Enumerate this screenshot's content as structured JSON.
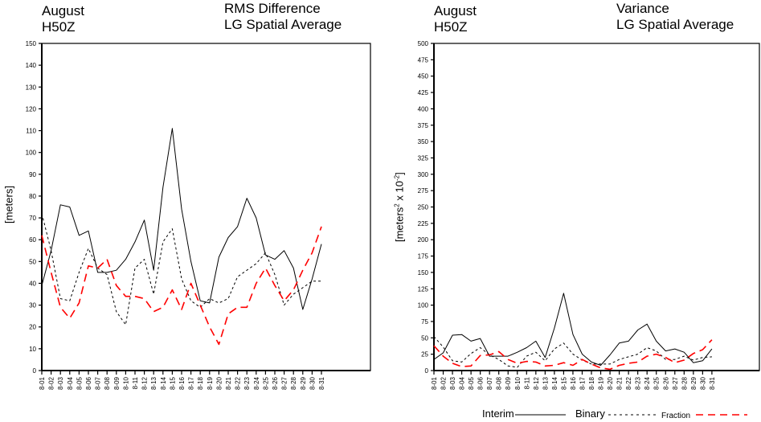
{
  "chart_data": [
    {
      "type": "line",
      "title_left": [
        "August",
        "H50Z"
      ],
      "title_right": [
        "RMS Difference",
        "LG Spatial Average"
      ],
      "ylabel": "[meters]",
      "xlabel": "",
      "ylim": [
        0,
        150
      ],
      "yticks": [
        0,
        10,
        20,
        30,
        40,
        50,
        60,
        70,
        80,
        90,
        100,
        110,
        120,
        130,
        140,
        150
      ],
      "categories": [
        "8-01",
        "8-02",
        "8-03",
        "8-04",
        "8-05",
        "8-06",
        "8-07",
        "8-08",
        "8-09",
        "8-10",
        "8-11",
        "8-12",
        "8-13",
        "8-14",
        "8-15",
        "8-16",
        "8-17",
        "8-18",
        "8-19",
        "8-20",
        "8-21",
        "8-22",
        "8-23",
        "8-24",
        "8-25",
        "8-26",
        "8-27",
        "8-28",
        "8-29",
        "8-30",
        "8-31"
      ],
      "grid": false,
      "series": [
        {
          "name": "Interim",
          "style": "solid",
          "color": "#000000",
          "values": [
            39,
            55,
            76,
            75,
            62,
            64,
            45,
            45,
            46,
            51,
            59,
            69,
            46,
            84,
            111,
            74,
            50,
            32,
            31,
            52,
            61,
            66,
            79,
            70,
            53,
            51,
            55,
            47,
            28,
            42,
            58
          ]
        },
        {
          "name": "Binary",
          "style": "dotted",
          "color": "#000000",
          "values": [
            72,
            55,
            33,
            32,
            45,
            56,
            47,
            44,
            27,
            21,
            47,
            51,
            35,
            59,
            65,
            42,
            32,
            29,
            33,
            31,
            33,
            43,
            46,
            49,
            54,
            44,
            30,
            35,
            38,
            41,
            41
          ]
        },
        {
          "name": "Fraction",
          "style": "dashed",
          "color": "#ff0000",
          "values": [
            62,
            45,
            29,
            24,
            31,
            48,
            47,
            51,
            39,
            34,
            34,
            33,
            27,
            29,
            37,
            28,
            40,
            30,
            20,
            12,
            26,
            29,
            29,
            40,
            47,
            39,
            32,
            37,
            46,
            54,
            66
          ]
        }
      ]
    },
    {
      "type": "line",
      "title_left": [
        "August",
        "H50Z"
      ],
      "title_right": [
        "Variance",
        "LG Spatial Average"
      ],
      "ylabel": "[meters",
      "ylabel_sup": "2",
      "ylabel_mid": " x 10",
      "ylabel_sup2": "-2",
      "ylabel_end": "]",
      "xlabel": "",
      "ylim": [
        0,
        500
      ],
      "yticks": [
        0,
        25,
        50,
        75,
        100,
        125,
        150,
        175,
        200,
        225,
        250,
        275,
        300,
        325,
        350,
        375,
        400,
        425,
        450,
        475,
        500
      ],
      "categories": [
        "8-01",
        "8-02",
        "8-03",
        "8-04",
        "8-05",
        "8-06",
        "8-07",
        "8-08",
        "8-09",
        "8-10",
        "8-11",
        "8-12",
        "8-13",
        "8-14",
        "8-15",
        "8-16",
        "8-17",
        "8-18",
        "8-19",
        "8-20",
        "8-21",
        "8-22",
        "8-23",
        "8-24",
        "8-25",
        "8-26",
        "8-27",
        "8-28",
        "8-29",
        "8-30",
        "8-31"
      ],
      "grid": false,
      "series": [
        {
          "name": "Interim",
          "style": "solid",
          "color": "#000000",
          "values": [
            17,
            27,
            54,
            55,
            45,
            49,
            22,
            22,
            22,
            28,
            35,
            45,
            20,
            65,
            118,
            55,
            25,
            13,
            8,
            24,
            42,
            45,
            62,
            71,
            45,
            30,
            33,
            28,
            12,
            15,
            33
          ]
        },
        {
          "name": "Binary",
          "style": "dotted",
          "color": "#000000",
          "values": [
            52,
            36,
            15,
            13,
            26,
            35,
            24,
            17,
            7,
            5,
            22,
            28,
            15,
            33,
            42,
            25,
            16,
            10,
            10,
            10,
            17,
            21,
            25,
            35,
            30,
            17,
            17,
            22,
            16,
            20,
            21
          ]
        },
        {
          "name": "Fraction",
          "style": "dashed",
          "color": "#ff0000",
          "values": [
            38,
            22,
            11,
            6,
            7,
            23,
            24,
            29,
            17,
            11,
            14,
            13,
            7,
            8,
            12,
            8,
            17,
            10,
            4,
            2,
            8,
            11,
            13,
            22,
            25,
            20,
            12,
            16,
            26,
            32,
            47
          ]
        }
      ]
    }
  ],
  "legend": {
    "position": "bottom-right",
    "items": [
      {
        "label": "Interim",
        "style": "solid",
        "color": "#000000"
      },
      {
        "label": "Binary",
        "style": "dotted",
        "color": "#000000"
      },
      {
        "label": "Fraction",
        "style": "dashed",
        "color": "#ff0000"
      }
    ]
  }
}
